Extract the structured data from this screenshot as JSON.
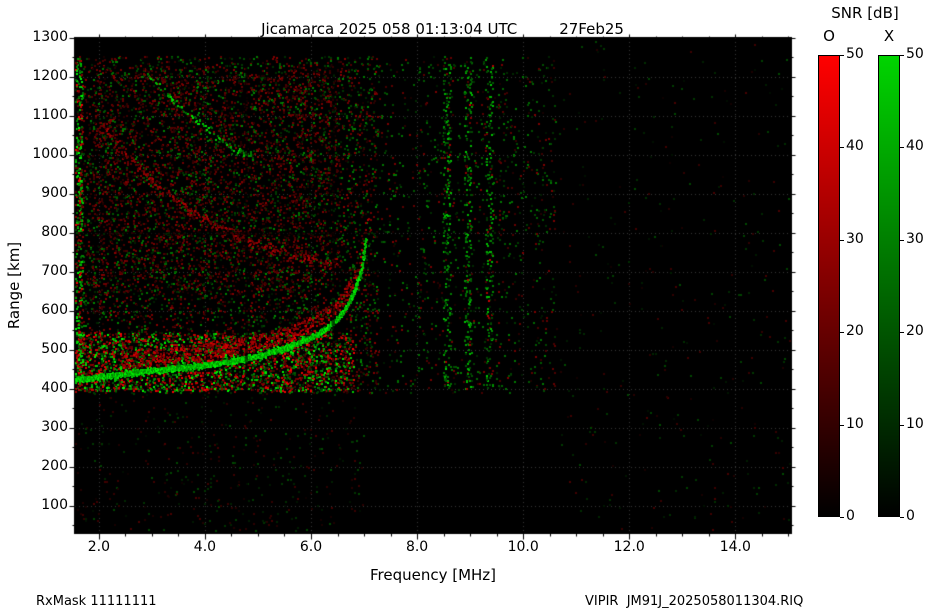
{
  "header": {
    "title": "Jicamarca 2025 058 01:13:04 UTC",
    "date": "27Feb25"
  },
  "footer": {
    "rx_mask": "RxMask 11111111",
    "file_label": "VIPIR  JM91J_2025058011304.RIQ"
  },
  "colorbar": {
    "title": "SNR [dB]",
    "min": 0,
    "max": 50,
    "ticks": [
      0,
      10,
      20,
      30,
      40,
      50
    ],
    "bars": [
      {
        "label": "O",
        "top_color": "#ff0000",
        "bottom_color": "#000000"
      },
      {
        "label": "X",
        "top_color": "#00d400",
        "bottom_color": "#000000"
      }
    ]
  },
  "chart_data": {
    "type": "heatmap",
    "title": "Jicamarca 2025 058 01:13:04 UTC 27Feb25",
    "xlabel": "Frequency [MHz]",
    "ylabel": "Range [km]",
    "value_label": "SNR [dB]",
    "value_range": [
      0,
      50
    ],
    "xlim": [
      1.55,
      15.05
    ],
    "ylim": [
      30,
      1300
    ],
    "x_ticks": [
      2.0,
      4.0,
      6.0,
      8.0,
      10.0,
      12.0,
      14.0
    ],
    "x_tick_labels": [
      "2.0",
      "4.0",
      "6.0",
      "8.0",
      "10.0",
      "12.0",
      "14.0"
    ],
    "x_minor_step": 0.5,
    "y_ticks": [
      100,
      200,
      300,
      400,
      500,
      600,
      700,
      800,
      900,
      1000,
      1100,
      1200,
      1300
    ],
    "y_minor_step": 50,
    "grid": true,
    "modes": [
      {
        "name": "O",
        "color": "#ff0000"
      },
      {
        "name": "X",
        "color": "#00d400"
      }
    ],
    "traces": [
      {
        "name": "f-layer-echo-trace",
        "mode": "X",
        "points": [
          [
            1.55,
            425
          ],
          [
            2.0,
            432
          ],
          [
            2.5,
            440
          ],
          [
            3.0,
            448
          ],
          [
            3.5,
            455
          ],
          [
            4.0,
            462
          ],
          [
            4.5,
            472
          ],
          [
            5.0,
            487
          ],
          [
            5.5,
            505
          ],
          [
            6.0,
            532
          ],
          [
            6.3,
            558
          ],
          [
            6.6,
            598
          ],
          [
            6.8,
            648
          ],
          [
            6.95,
            710
          ],
          [
            7.03,
            790
          ]
        ],
        "step": 0.006,
        "dots_per_step": 3,
        "jitter_km": 9,
        "intensity": [
          0.5,
          1.0
        ],
        "prob": 1.0,
        "fringe": {
          "mode": "O",
          "offset_km": [
            14,
            55
          ],
          "prob": 0.75,
          "intensity": [
            0.3,
            0.85
          ],
          "from_mhz": 2.4
        }
      },
      {
        "name": "oblique-spread-echo",
        "mode": "O",
        "points": [
          [
            2.0,
            1080
          ],
          [
            2.6,
            990
          ],
          [
            3.2,
            910
          ],
          [
            3.8,
            850
          ],
          [
            4.4,
            805
          ],
          [
            5.0,
            770
          ],
          [
            5.6,
            745
          ],
          [
            6.2,
            728
          ],
          [
            6.5,
            722
          ]
        ],
        "step": 0.01,
        "dots_per_step": 1,
        "jitter_km": 20,
        "intensity": [
          0.25,
          0.7
        ],
        "prob": 0.55
      },
      {
        "name": "upper-spread-arc",
        "mode": "X",
        "points": [
          [
            2.9,
            1210
          ],
          [
            3.4,
            1140
          ],
          [
            3.9,
            1080
          ],
          [
            4.4,
            1030
          ],
          [
            4.9,
            995
          ]
        ],
        "step": 0.012,
        "dots_per_step": 1,
        "jitter_km": 14,
        "intensity": [
          0.3,
          0.9
        ],
        "prob": 0.5
      }
    ],
    "noise_regions": [
      {
        "name": "left-spread-field",
        "x": [
          1.55,
          7.25
        ],
        "y": [
          390,
          1255
        ],
        "density": 0.22,
        "o_weight": 0.55,
        "intensity": [
          0.08,
          0.55
        ]
      },
      {
        "name": "upper-left-red-cloud",
        "x": [
          1.8,
          6.5
        ],
        "y": [
          650,
          1230
        ],
        "density": 0.16,
        "o_weight": 0.85,
        "intensity": [
          0.1,
          0.5
        ]
      },
      {
        "name": "bottom-bright-band",
        "x": [
          1.55,
          6.8
        ],
        "y": [
          395,
          545
        ],
        "density": 0.55,
        "o_weight": 0.5,
        "intensity": [
          0.2,
          1.0
        ]
      },
      {
        "name": "left-edge-column",
        "x": [
          1.55,
          1.68
        ],
        "y": [
          390,
          1255
        ],
        "density": 0.6,
        "o_weight": 0.35,
        "intensity": [
          0.3,
          1.0
        ]
      },
      {
        "name": "low-altitude-sparse",
        "x": [
          1.55,
          7.0
        ],
        "y": [
          35,
          390
        ],
        "density": 0.04,
        "o_weight": 0.5,
        "intensity": [
          0.05,
          0.3
        ]
      },
      {
        "name": "mid-band-scatter",
        "x": [
          7.25,
          10.6
        ],
        "y": [
          390,
          1255
        ],
        "density": 0.07,
        "o_weight": 0.35,
        "intensity": [
          0.08,
          0.5
        ]
      },
      {
        "name": "rfi-column-8.55",
        "x": [
          8.48,
          8.62
        ],
        "y": [
          400,
          1255
        ],
        "density": 0.3,
        "o_weight": 0.1,
        "intensity": [
          0.2,
          0.8
        ]
      },
      {
        "name": "rfi-column-8.95",
        "x": [
          8.88,
          9.02
        ],
        "y": [
          400,
          1255
        ],
        "density": 0.3,
        "o_weight": 0.1,
        "intensity": [
          0.2,
          0.8
        ]
      },
      {
        "name": "rfi-column-9.35",
        "x": [
          9.28,
          9.42
        ],
        "y": [
          400,
          1255
        ],
        "density": 0.25,
        "o_weight": 0.1,
        "intensity": [
          0.2,
          0.8
        ]
      },
      {
        "name": "far-right-sparse",
        "x": [
          10.6,
          15.05
        ],
        "y": [
          35,
          1295
        ],
        "density": 0.012,
        "o_weight": 0.4,
        "intensity": [
          0.05,
          0.3
        ]
      }
    ],
    "absorption_lines": {
      "vertical_mhz": [
        4.78,
        6.42
      ],
      "horizontal_km": [
        800
      ]
    }
  }
}
